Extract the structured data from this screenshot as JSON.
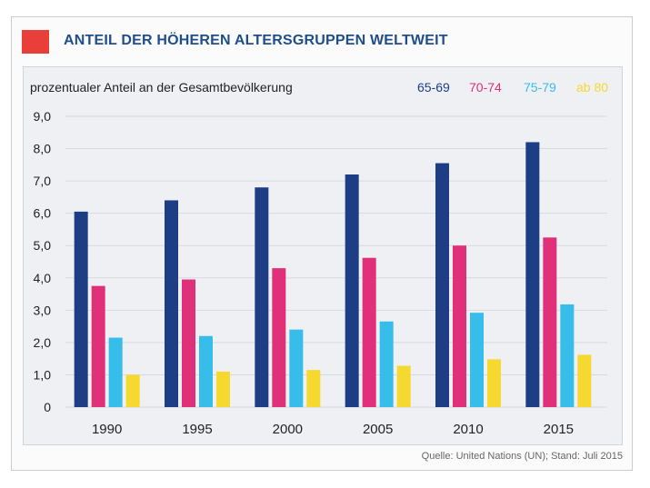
{
  "title": "ANTEIL DER HÖHEREN ALTERSGRUPPEN WELTWEIT",
  "source": "Quelle: United Nations (UN); Stand: Juli 2015",
  "chart_data": {
    "type": "bar",
    "title": "ANTEIL DER HÖHEREN ALTERSGRUPPEN WELTWEIT",
    "ylabel": "prozentualer Anteil an der Gesamtbevölkerung",
    "xlabel": "",
    "categories": [
      "1990",
      "1995",
      "2000",
      "2005",
      "2010",
      "2015"
    ],
    "ylim": [
      0,
      9
    ],
    "yticks": [
      "0",
      "1,0",
      "2,0",
      "3,0",
      "4,0",
      "5,0",
      "6,0",
      "7,0",
      "8,0",
      "9,0"
    ],
    "grid": true,
    "legend_position": "top-right",
    "series": [
      {
        "name": "65-69",
        "color": "#1d3e85",
        "values": [
          6.05,
          6.4,
          6.8,
          7.2,
          7.55,
          8.2
        ]
      },
      {
        "name": "70-74",
        "color": "#e0307a",
        "values": [
          3.75,
          3.95,
          4.3,
          4.62,
          5.0,
          5.25
        ]
      },
      {
        "name": "75-79",
        "color": "#36bdea",
        "values": [
          2.15,
          2.2,
          2.4,
          2.65,
          2.92,
          3.18
        ]
      },
      {
        "name": "ab 80",
        "color": "#f6d92e",
        "values": [
          1.0,
          1.1,
          1.15,
          1.28,
          1.48,
          1.62
        ]
      }
    ]
  }
}
